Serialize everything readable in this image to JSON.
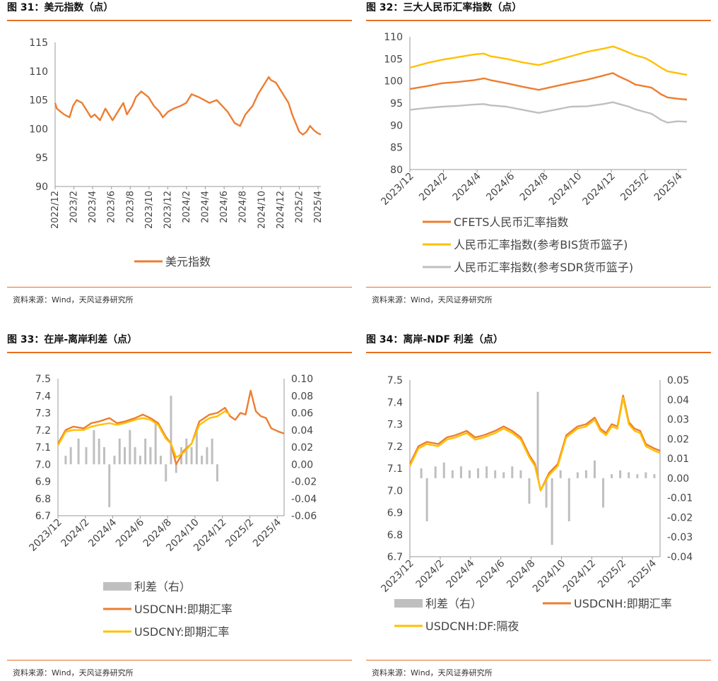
{
  "source_text": "资料来源：Wind，天风证券研究所",
  "chart_data": [
    {
      "id": "fig31",
      "title": "图 31：美元指数（点）",
      "type": "line",
      "yaxis": {
        "min": 90,
        "max": 115,
        "ticks": [
          90,
          95,
          100,
          105,
          110,
          115
        ]
      },
      "xticks": [
        "2022/12",
        "2023/2",
        "2023/4",
        "2023/6",
        "2023/8",
        "2023/10",
        "2023/12",
        "2024/2",
        "2024/4",
        "2024/6",
        "2024/8",
        "2024/10",
        "2024/12",
        "2025/2",
        "2025/4"
      ],
      "xrange": [
        0,
        14.8
      ],
      "series": [
        {
          "name": "美元指数",
          "color": "#ED7D31",
          "x": [
            0,
            0.1,
            0.3,
            0.5,
            0.8,
            1.0,
            1.2,
            1.5,
            1.8,
            2.0,
            2.2,
            2.5,
            2.8,
            3.0,
            3.2,
            3.5,
            3.8,
            4.0,
            4.3,
            4.5,
            4.8,
            5.0,
            5.2,
            5.5,
            5.8,
            6.0,
            6.3,
            6.6,
            7.0,
            7.3,
            7.6,
            8.0,
            8.3,
            8.6,
            9.0,
            9.3,
            9.6,
            10.0,
            10.3,
            10.6,
            11.0,
            11.3,
            11.6,
            11.9,
            12.0,
            12.3,
            12.6,
            13.0,
            13.2,
            13.4,
            13.6,
            13.8,
            14.0,
            14.2,
            14.4,
            14.6,
            14.8
          ],
          "y": [
            104.5,
            103.5,
            103.0,
            102.5,
            102.0,
            104.0,
            105.0,
            104.5,
            103.0,
            102.0,
            102.5,
            101.5,
            103.5,
            102.5,
            101.5,
            103.0,
            104.5,
            102.5,
            104.0,
            105.5,
            106.5,
            106.0,
            105.5,
            104.0,
            103.0,
            102.0,
            103.0,
            103.5,
            104.0,
            104.5,
            106.0,
            105.5,
            105.0,
            104.5,
            105.0,
            104.0,
            103.0,
            101.0,
            100.5,
            102.5,
            104.0,
            106.0,
            107.5,
            109.0,
            108.5,
            108.0,
            106.5,
            104.5,
            102.5,
            101.0,
            99.5,
            99.0,
            99.5,
            100.5,
            99.8,
            99.3,
            99.0
          ]
        }
      ]
    },
    {
      "id": "fig32",
      "title": "图 32：三大人民币汇率指数（点）",
      "type": "line",
      "yaxis": {
        "min": 80,
        "max": 110,
        "ticks": [
          80,
          85,
          90,
          95,
          100,
          105,
          110
        ]
      },
      "xticks": [
        "2023/12",
        "2024/2",
        "2024/4",
        "2024/6",
        "2024/8",
        "2024/10",
        "2024/12",
        "2025/2",
        "2025/4"
      ],
      "xrange": [
        0,
        8.6
      ],
      "series": [
        {
          "name": "CFETS人民币汇率指数",
          "color": "#ED7D31",
          "x": [
            0,
            0.5,
            1.0,
            1.5,
            2.0,
            2.3,
            2.5,
            3.0,
            3.5,
            4.0,
            4.5,
            5.0,
            5.5,
            6.0,
            6.3,
            6.5,
            6.8,
            7.0,
            7.3,
            7.5,
            7.8,
            8.0,
            8.3,
            8.6
          ],
          "y": [
            98.2,
            98.8,
            99.5,
            99.8,
            100.2,
            100.6,
            100.2,
            99.5,
            98.7,
            98.0,
            98.8,
            99.6,
            100.3,
            101.2,
            101.8,
            101.0,
            100.0,
            99.2,
            98.8,
            98.5,
            97.0,
            96.3,
            96.0,
            95.8
          ]
        },
        {
          "name": "人民币汇率指数(参考BIS货币篮子)",
          "color": "#FFC000",
          "x": [
            0,
            0.5,
            1.0,
            1.5,
            2.0,
            2.3,
            2.5,
            3.0,
            3.5,
            4.0,
            4.5,
            5.0,
            5.5,
            6.0,
            6.3,
            6.5,
            6.8,
            7.0,
            7.3,
            7.5,
            7.8,
            8.0,
            8.3,
            8.6
          ],
          "y": [
            103.0,
            104.0,
            104.8,
            105.4,
            106.0,
            106.2,
            105.6,
            105.0,
            104.2,
            103.6,
            104.6,
            105.6,
            106.6,
            107.3,
            107.8,
            107.3,
            106.4,
            105.8,
            105.2,
            104.4,
            103.0,
            102.2,
            101.8,
            101.4
          ]
        },
        {
          "name": "人民币汇率指数(参考SDR货币篮子)",
          "color": "#BFBFBF",
          "x": [
            0,
            0.5,
            1.0,
            1.5,
            2.0,
            2.3,
            2.5,
            3.0,
            3.5,
            4.0,
            4.5,
            5.0,
            5.5,
            6.0,
            6.3,
            6.5,
            6.8,
            7.0,
            7.3,
            7.5,
            7.8,
            8.0,
            8.3,
            8.6
          ],
          "y": [
            93.5,
            93.9,
            94.2,
            94.4,
            94.7,
            94.8,
            94.5,
            94.2,
            93.5,
            92.8,
            93.5,
            94.2,
            94.3,
            94.8,
            95.2,
            94.8,
            94.2,
            93.6,
            93.0,
            92.6,
            91.2,
            90.6,
            90.9,
            90.8
          ]
        }
      ]
    },
    {
      "id": "fig33",
      "title": "图 33：在岸-离岸利差（点）",
      "type": "line",
      "yaxis": {
        "min": 6.7,
        "max": 7.5,
        "ticks": [
          6.7,
          6.8,
          6.9,
          7.0,
          7.1,
          7.2,
          7.3,
          7.4,
          7.5
        ]
      },
      "y2axis": {
        "min": -0.06,
        "max": 0.1,
        "ticks": [
          -0.06,
          -0.04,
          -0.02,
          0.0,
          0.02,
          0.04,
          0.06,
          0.08,
          0.1
        ]
      },
      "xticks": [
        "2023/12",
        "2024/2",
        "2024/4",
        "2024/6",
        "2024/8",
        "2024/10",
        "2024/12",
        "2025/2",
        "2025/4"
      ],
      "xrange": [
        0,
        8.8
      ],
      "bars": {
        "name": "利差（右）",
        "color": "#BFBFBF",
        "x": [
          0.3,
          0.5,
          0.8,
          1.1,
          1.4,
          1.6,
          1.8,
          2.0,
          2.2,
          2.4,
          2.6,
          2.8,
          3.0,
          3.2,
          3.4,
          3.6,
          3.8,
          4.0,
          4.2,
          4.4,
          4.6,
          4.8,
          5.0,
          5.2,
          5.4,
          5.6,
          5.8,
          6.0,
          6.2
        ],
        "values": [
          0.01,
          0.02,
          0.03,
          0.02,
          0.04,
          0.03,
          0.02,
          -0.05,
          0.01,
          0.03,
          0.02,
          0.04,
          0.02,
          0.01,
          0.03,
          0.02,
          0.05,
          0.01,
          -0.02,
          0.08,
          -0.01,
          0.02,
          0.03,
          0.02,
          0.04,
          0.01,
          0.02,
          0.03,
          -0.02
        ]
      },
      "series": [
        {
          "name": "USDCNH:即期汇率",
          "color": "#ED7D31",
          "x": [
            0,
            0.3,
            0.6,
            1.0,
            1.3,
            1.6,
            2.0,
            2.3,
            2.6,
            3.0,
            3.3,
            3.6,
            3.9,
            4.2,
            4.4,
            4.6,
            4.9,
            5.2,
            5.5,
            5.9,
            6.2,
            6.5,
            6.7,
            6.9,
            7.1,
            7.3,
            7.5,
            7.7,
            7.9,
            8.1,
            8.3,
            8.6,
            8.8
          ],
          "y": [
            7.12,
            7.2,
            7.22,
            7.21,
            7.24,
            7.25,
            7.27,
            7.24,
            7.25,
            7.27,
            7.29,
            7.27,
            7.24,
            7.16,
            7.12,
            7.0,
            7.08,
            7.12,
            7.25,
            7.29,
            7.3,
            7.33,
            7.28,
            7.26,
            7.3,
            7.29,
            7.43,
            7.31,
            7.28,
            7.27,
            7.21,
            7.19,
            7.18
          ]
        },
        {
          "name": "USDCNY:即期汇率",
          "color": "#FFC000",
          "x": [
            0,
            0.3,
            0.6,
            1.0,
            1.3,
            1.6,
            2.0,
            2.3,
            2.6,
            3.0,
            3.3,
            3.6,
            3.9,
            4.2,
            4.4,
            4.6,
            4.9,
            5.2,
            5.5,
            5.9,
            6.2,
            6.5,
            6.7
          ],
          "y": [
            7.11,
            7.19,
            7.2,
            7.2,
            7.22,
            7.23,
            7.24,
            7.23,
            7.24,
            7.26,
            7.27,
            7.26,
            7.23,
            7.15,
            7.12,
            7.04,
            7.07,
            7.12,
            7.23,
            7.27,
            7.28,
            7.31,
            7.29
          ]
        }
      ]
    },
    {
      "id": "fig34",
      "title": "图 34：离岸-NDF 利差（点）",
      "type": "line",
      "yaxis": {
        "min": 6.7,
        "max": 7.5,
        "ticks": [
          6.7,
          6.8,
          6.9,
          7.0,
          7.1,
          7.2,
          7.3,
          7.4,
          7.5
        ]
      },
      "y2axis": {
        "min": -0.04,
        "max": 0.05,
        "ticks": [
          -0.04,
          -0.03,
          -0.02,
          -0.01,
          0.0,
          0.01,
          0.02,
          0.03,
          0.04,
          0.05
        ]
      },
      "xticks": [
        "2023/12",
        "2024/2",
        "2024/4",
        "2024/6",
        "2024/8",
        "2024/10",
        "2024/12",
        "2025/2",
        "2025/4"
      ],
      "xrange": [
        0,
        8.8
      ],
      "bars": {
        "name": "利差（右）",
        "color": "#BFBFBF",
        "x": [
          0.4,
          0.6,
          0.9,
          1.2,
          1.5,
          1.8,
          2.1,
          2.4,
          2.7,
          3.0,
          3.3,
          3.6,
          3.9,
          4.2,
          4.5,
          4.8,
          5.0,
          5.3,
          5.6,
          5.9,
          6.2,
          6.5,
          6.8,
          7.1,
          7.4,
          7.7,
          8.0,
          8.3,
          8.6
        ],
        "values": [
          0.005,
          -0.022,
          0.006,
          0.008,
          0.004,
          0.006,
          0.004,
          0.005,
          0.006,
          0.004,
          0.003,
          0.006,
          0.004,
          -0.013,
          0.044,
          -0.015,
          -0.034,
          0.004,
          -0.022,
          0.003,
          0.004,
          0.009,
          -0.015,
          0.002,
          0.004,
          0.003,
          0.002,
          0.003,
          0.002
        ]
      },
      "series": [
        {
          "name": "USDCNH:即期汇率",
          "color": "#ED7D31",
          "x": [
            0,
            0.3,
            0.6,
            1.0,
            1.3,
            1.6,
            2.0,
            2.3,
            2.6,
            3.0,
            3.3,
            3.6,
            3.9,
            4.2,
            4.4,
            4.6,
            4.9,
            5.2,
            5.5,
            5.9,
            6.2,
            6.5,
            6.7,
            6.9,
            7.1,
            7.3,
            7.5,
            7.7,
            7.9,
            8.1,
            8.3,
            8.6,
            8.8
          ],
          "y": [
            7.12,
            7.2,
            7.22,
            7.21,
            7.24,
            7.25,
            7.27,
            7.24,
            7.25,
            7.27,
            7.29,
            7.27,
            7.24,
            7.16,
            7.12,
            7.0,
            7.08,
            7.12,
            7.25,
            7.29,
            7.3,
            7.33,
            7.28,
            7.26,
            7.3,
            7.29,
            7.43,
            7.31,
            7.28,
            7.27,
            7.21,
            7.19,
            7.18
          ]
        },
        {
          "name": "USDCNH:DF:隔夜",
          "color": "#FFC000",
          "x": [
            0,
            0.3,
            0.6,
            1.0,
            1.3,
            1.6,
            2.0,
            2.3,
            2.6,
            3.0,
            3.3,
            3.6,
            3.9,
            4.2,
            4.4,
            4.6,
            4.9,
            5.2,
            5.5,
            5.9,
            6.2,
            6.5,
            6.7,
            6.9,
            7.1,
            7.3,
            7.5,
            7.7,
            7.9,
            8.1,
            8.3,
            8.6,
            8.8
          ],
          "y": [
            7.11,
            7.19,
            7.21,
            7.2,
            7.23,
            7.24,
            7.26,
            7.23,
            7.24,
            7.26,
            7.28,
            7.26,
            7.23,
            7.15,
            7.11,
            7.0,
            7.07,
            7.11,
            7.24,
            7.28,
            7.29,
            7.32,
            7.27,
            7.25,
            7.29,
            7.28,
            7.42,
            7.3,
            7.27,
            7.26,
            7.2,
            7.18,
            7.17
          ]
        }
      ]
    }
  ]
}
